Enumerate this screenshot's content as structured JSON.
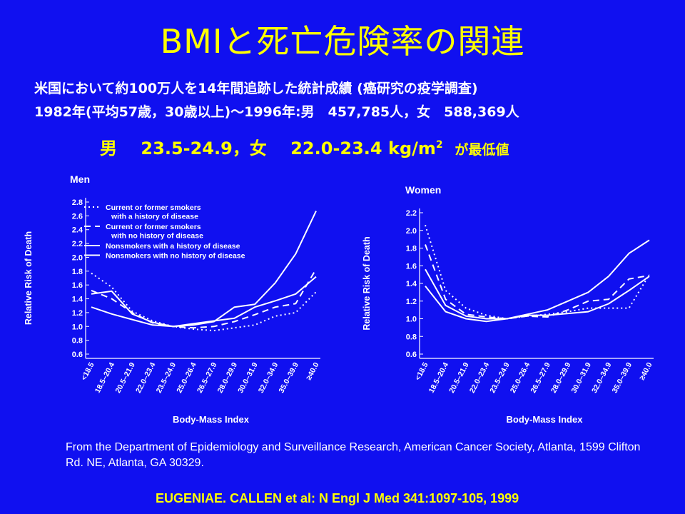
{
  "title": "BMIと死亡危険率の関連",
  "subtitle_line1": "米国において約100万人を14年間追跡した統計成績 (癌研究の疫学調査)",
  "subtitle_line2": "1982年(平均57歳，30歳以上)～1996年:男　457,785人，女　588,369人",
  "highlight": {
    "men_label": "男",
    "men_range": "23.5-24.9，",
    "women_label": "女",
    "women_range": "22.0-23.4 kg/m",
    "unit_superscript": "2",
    "suffix": "が最低値"
  },
  "source_text": "From the Department of Epidemiology and Surveillance Research, American Cancer Society, Atlanta, 1599 Clifton Rd. NE, Atlanta, GA 30329.",
  "citation": "EUGENIAE. CALLEN et al:  N Engl J Med 341:1097-105, 1999",
  "colors": {
    "background": "#1010f0",
    "title": "#ffff00",
    "text": "#ffffff",
    "lines": "#ffffff"
  },
  "chart_data": [
    {
      "type": "line",
      "title": "Men",
      "xlabel": "Body-Mass Index",
      "ylabel": "Relative Risk of Death",
      "ylim": [
        0.6,
        2.8
      ],
      "yticks": [
        "0.6",
        "0.8",
        "1.0",
        "1.2",
        "1.4",
        "1.6",
        "1.8",
        "2.0",
        "2.2",
        "2.4",
        "2.6",
        "2.8"
      ],
      "categories": [
        "<18.5",
        "18.5–20.4",
        "20.5–21.9",
        "22.0–23.4",
        "23.5–24.9",
        "25.0–26.4",
        "26.5–27.9",
        "28.0–29.9",
        "30.0–31.9",
        "32.0–34.9",
        "35.0–39.9",
        "≥40.0"
      ],
      "legend_position": "top-left",
      "series": [
        {
          "name": "Current or former smokers with a history of disease",
          "style": "dotted",
          "values": [
            1.77,
            1.57,
            1.22,
            1.08,
            1.0,
            0.96,
            0.94,
            0.98,
            1.02,
            1.15,
            1.2,
            1.5
          ]
        },
        {
          "name": "Current or former smokers with no history of disease",
          "style": "dashed",
          "values": [
            1.52,
            1.4,
            1.2,
            1.05,
            1.0,
            0.98,
            1.0,
            1.07,
            1.17,
            1.28,
            1.33,
            1.83
          ]
        },
        {
          "name": "Nonsmokers with a history of disease",
          "style": "solid",
          "values": [
            1.47,
            1.51,
            1.18,
            1.06,
            1.0,
            1.02,
            1.07,
            1.28,
            1.32,
            1.63,
            2.05,
            2.67
          ]
        },
        {
          "name": "Nonsmokers with no history of disease",
          "style": "solid",
          "values": [
            1.28,
            1.18,
            1.1,
            1.02,
            1.0,
            1.04,
            1.08,
            1.12,
            1.28,
            1.37,
            1.47,
            1.72
          ]
        }
      ]
    },
    {
      "type": "line",
      "title": "Women",
      "xlabel": "Body-Mass Index",
      "ylabel": "Relative Risk of Death",
      "ylim": [
        0.6,
        2.2
      ],
      "yticks": [
        "0.6",
        "0.8",
        "1.0",
        "1.2",
        "1.4",
        "1.6",
        "1.8",
        "2.0",
        "2.2"
      ],
      "categories": [
        "<18.5",
        "18.5–20.4",
        "20.5–21.9",
        "22.0–23.4",
        "23.5–24.9",
        "25.0–26.4",
        "26.5–27.9",
        "28.0–29.9",
        "30.0–31.9",
        "32.0–34.9",
        "35.0–39.9",
        "≥40.0"
      ],
      "series": [
        {
          "name": "Current or former smokers with a history of disease",
          "style": "dotted",
          "values": [
            2.06,
            1.32,
            1.12,
            1.04,
            1.0,
            1.03,
            1.05,
            1.08,
            1.12,
            1.12,
            1.12,
            1.5
          ]
        },
        {
          "name": "Current or former smokers with no history of disease",
          "style": "dashed",
          "values": [
            1.84,
            1.22,
            1.05,
            1.02,
            1.0,
            1.03,
            1.02,
            1.1,
            1.2,
            1.22,
            1.45,
            1.49
          ]
        },
        {
          "name": "Nonsmokers with a history of disease",
          "style": "solid",
          "values": [
            1.56,
            1.15,
            1.03,
            1.0,
            1.0,
            1.05,
            1.1,
            1.2,
            1.3,
            1.48,
            1.74,
            1.89
          ]
        },
        {
          "name": "Nonsmokers with no history of disease",
          "style": "solid",
          "values": [
            1.37,
            1.08,
            1.0,
            0.97,
            1.0,
            1.04,
            1.04,
            1.06,
            1.08,
            1.17,
            1.32,
            1.48
          ]
        }
      ]
    }
  ]
}
